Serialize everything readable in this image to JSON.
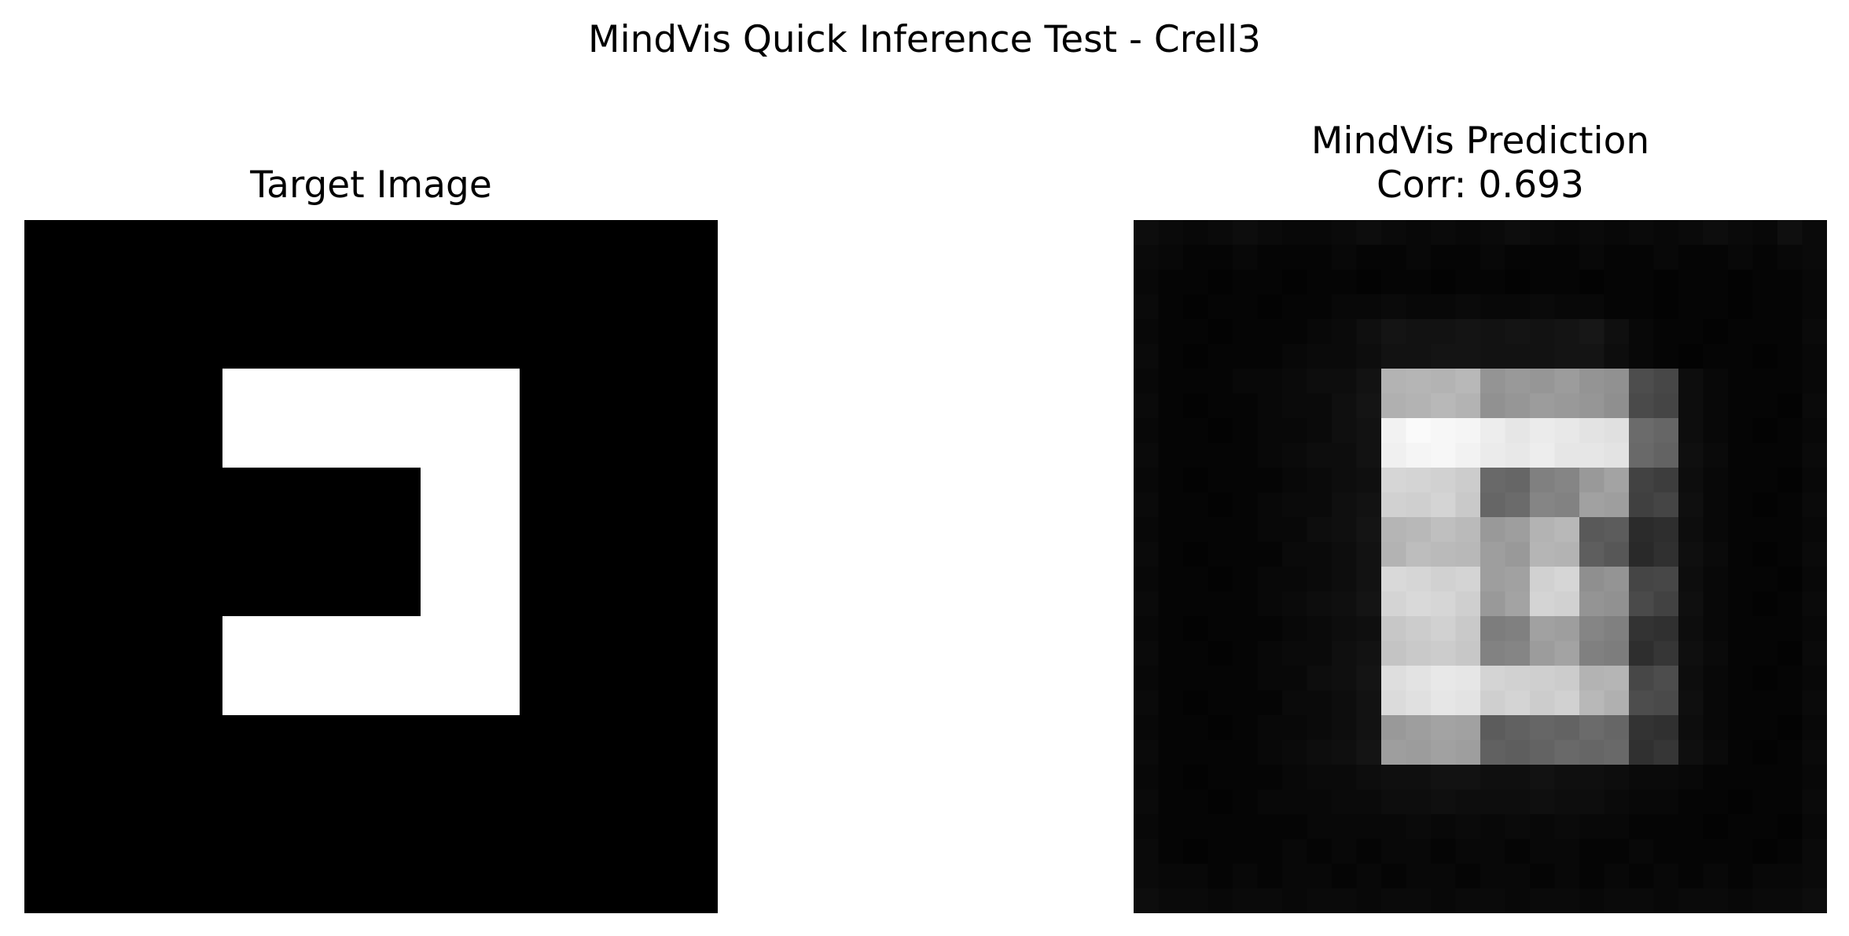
{
  "figure": {
    "title": "MindVis Quick Inference Test - Crell3"
  },
  "chart_data": [
    {
      "type": "heatmap",
      "title": "Target Image",
      "colormap": "gray",
      "axes": "off",
      "rows": 14,
      "cols": 14,
      "values": [
        [
          0,
          0,
          0,
          0,
          0,
          0,
          0,
          0,
          0,
          0,
          0,
          0,
          0,
          0
        ],
        [
          0,
          0,
          0,
          0,
          0,
          0,
          0,
          0,
          0,
          0,
          0,
          0,
          0,
          0
        ],
        [
          0,
          0,
          0,
          0,
          0,
          0,
          0,
          0,
          0,
          0,
          0,
          0,
          0,
          0
        ],
        [
          0,
          0,
          0,
          0,
          1,
          1,
          1,
          1,
          1,
          1,
          0,
          0,
          0,
          0
        ],
        [
          0,
          0,
          0,
          0,
          1,
          1,
          1,
          1,
          1,
          1,
          0,
          0,
          0,
          0
        ],
        [
          0,
          0,
          0,
          0,
          0,
          0,
          0,
          0,
          1,
          1,
          0,
          0,
          0,
          0
        ],
        [
          0,
          0,
          0,
          0,
          0,
          0,
          0,
          0,
          1,
          1,
          0,
          0,
          0,
          0
        ],
        [
          0,
          0,
          0,
          0,
          0,
          0,
          0,
          0,
          1,
          1,
          0,
          0,
          0,
          0
        ],
        [
          0,
          0,
          0,
          0,
          1,
          1,
          1,
          1,
          1,
          1,
          0,
          0,
          0,
          0
        ],
        [
          0,
          0,
          0,
          0,
          1,
          1,
          1,
          1,
          1,
          1,
          0,
          0,
          0,
          0
        ],
        [
          0,
          0,
          0,
          0,
          0,
          0,
          0,
          0,
          0,
          0,
          0,
          0,
          0,
          0
        ],
        [
          0,
          0,
          0,
          0,
          0,
          0,
          0,
          0,
          0,
          0,
          0,
          0,
          0,
          0
        ],
        [
          0,
          0,
          0,
          0,
          0,
          0,
          0,
          0,
          0,
          0,
          0,
          0,
          0,
          0
        ],
        [
          0,
          0,
          0,
          0,
          0,
          0,
          0,
          0,
          0,
          0,
          0,
          0,
          0,
          0
        ]
      ]
    },
    {
      "type": "heatmap",
      "title": "MindVis Prediction",
      "subtitle": "Corr: 0.693",
      "colormap": "gray",
      "axes": "off",
      "rows": 28,
      "cols": 28,
      "values": [
        [
          0.05,
          0.04,
          0.03,
          0.04,
          0.05,
          0.04,
          0.03,
          0.03,
          0.04,
          0.05,
          0.04,
          0.03,
          0.04,
          0.03,
          0.04,
          0.05,
          0.04,
          0.03,
          0.04,
          0.03,
          0.04,
          0.03,
          0.04,
          0.05,
          0.04,
          0.03,
          0.06,
          0.04
        ],
        [
          0.04,
          0.03,
          0.02,
          0.02,
          0.03,
          0.02,
          0.02,
          0.02,
          0.03,
          0.02,
          0.02,
          0.03,
          0.02,
          0.02,
          0.03,
          0.02,
          0.02,
          0.02,
          0.03,
          0.02,
          0.02,
          0.03,
          0.02,
          0.02,
          0.03,
          0.02,
          0.03,
          0.04
        ],
        [
          0.03,
          0.02,
          0.02,
          0.01,
          0.02,
          0.02,
          0.01,
          0.02,
          0.02,
          0.01,
          0.02,
          0.02,
          0.01,
          0.02,
          0.02,
          0.01,
          0.02,
          0.02,
          0.01,
          0.02,
          0.02,
          0.01,
          0.02,
          0.02,
          0.01,
          0.02,
          0.02,
          0.03
        ],
        [
          0.04,
          0.02,
          0.01,
          0.02,
          0.02,
          0.01,
          0.02,
          0.02,
          0.03,
          0.03,
          0.04,
          0.03,
          0.03,
          0.04,
          0.03,
          0.03,
          0.04,
          0.03,
          0.03,
          0.02,
          0.02,
          0.01,
          0.02,
          0.02,
          0.01,
          0.02,
          0.02,
          0.03
        ],
        [
          0.03,
          0.02,
          0.02,
          0.01,
          0.02,
          0.02,
          0.02,
          0.03,
          0.04,
          0.06,
          0.08,
          0.07,
          0.07,
          0.08,
          0.07,
          0.08,
          0.07,
          0.08,
          0.09,
          0.06,
          0.03,
          0.02,
          0.02,
          0.01,
          0.02,
          0.02,
          0.02,
          0.04
        ],
        [
          0.04,
          0.02,
          0.01,
          0.02,
          0.02,
          0.02,
          0.03,
          0.04,
          0.04,
          0.05,
          0.07,
          0.07,
          0.08,
          0.08,
          0.07,
          0.07,
          0.07,
          0.08,
          0.08,
          0.05,
          0.03,
          0.02,
          0.01,
          0.02,
          0.02,
          0.01,
          0.02,
          0.03
        ],
        [
          0.03,
          0.02,
          0.02,
          0.02,
          0.03,
          0.03,
          0.04,
          0.05,
          0.05,
          0.07,
          0.7,
          0.71,
          0.7,
          0.72,
          0.58,
          0.6,
          0.59,
          0.61,
          0.58,
          0.57,
          0.3,
          0.28,
          0.05,
          0.03,
          0.02,
          0.02,
          0.02,
          0.03
        ],
        [
          0.04,
          0.02,
          0.01,
          0.02,
          0.02,
          0.03,
          0.04,
          0.04,
          0.06,
          0.08,
          0.69,
          0.7,
          0.72,
          0.7,
          0.57,
          0.59,
          0.61,
          0.6,
          0.59,
          0.56,
          0.29,
          0.27,
          0.05,
          0.03,
          0.02,
          0.02,
          0.01,
          0.04
        ],
        [
          0.03,
          0.02,
          0.02,
          0.01,
          0.02,
          0.03,
          0.03,
          0.04,
          0.06,
          0.07,
          0.95,
          0.98,
          0.97,
          0.96,
          0.93,
          0.9,
          0.92,
          0.91,
          0.89,
          0.88,
          0.42,
          0.4,
          0.05,
          0.03,
          0.02,
          0.01,
          0.02,
          0.03
        ],
        [
          0.04,
          0.02,
          0.02,
          0.02,
          0.02,
          0.03,
          0.04,
          0.05,
          0.05,
          0.07,
          0.94,
          0.96,
          0.97,
          0.95,
          0.92,
          0.91,
          0.93,
          0.9,
          0.9,
          0.89,
          0.41,
          0.39,
          0.06,
          0.04,
          0.02,
          0.02,
          0.02,
          0.04
        ],
        [
          0.03,
          0.02,
          0.01,
          0.02,
          0.02,
          0.02,
          0.03,
          0.04,
          0.05,
          0.06,
          0.84,
          0.83,
          0.82,
          0.8,
          0.41,
          0.4,
          0.5,
          0.52,
          0.6,
          0.64,
          0.26,
          0.24,
          0.05,
          0.03,
          0.02,
          0.02,
          0.01,
          0.03
        ],
        [
          0.04,
          0.02,
          0.02,
          0.01,
          0.02,
          0.03,
          0.04,
          0.04,
          0.06,
          0.07,
          0.82,
          0.81,
          0.83,
          0.79,
          0.4,
          0.42,
          0.52,
          0.51,
          0.63,
          0.62,
          0.25,
          0.27,
          0.06,
          0.03,
          0.02,
          0.01,
          0.02,
          0.04
        ],
        [
          0.03,
          0.02,
          0.02,
          0.02,
          0.02,
          0.03,
          0.03,
          0.05,
          0.06,
          0.08,
          0.71,
          0.72,
          0.75,
          0.73,
          0.6,
          0.62,
          0.7,
          0.72,
          0.35,
          0.36,
          0.17,
          0.18,
          0.05,
          0.03,
          0.02,
          0.02,
          0.02,
          0.03
        ],
        [
          0.04,
          0.02,
          0.01,
          0.02,
          0.02,
          0.02,
          0.04,
          0.04,
          0.05,
          0.07,
          0.7,
          0.74,
          0.73,
          0.72,
          0.62,
          0.6,
          0.71,
          0.7,
          0.37,
          0.34,
          0.16,
          0.19,
          0.06,
          0.04,
          0.02,
          0.01,
          0.02,
          0.04
        ],
        [
          0.03,
          0.02,
          0.02,
          0.01,
          0.02,
          0.03,
          0.03,
          0.04,
          0.05,
          0.07,
          0.85,
          0.84,
          0.82,
          0.83,
          0.62,
          0.63,
          0.82,
          0.84,
          0.56,
          0.58,
          0.27,
          0.28,
          0.05,
          0.03,
          0.02,
          0.02,
          0.01,
          0.03
        ],
        [
          0.04,
          0.02,
          0.02,
          0.02,
          0.02,
          0.03,
          0.04,
          0.05,
          0.06,
          0.08,
          0.83,
          0.85,
          0.84,
          0.81,
          0.6,
          0.64,
          0.83,
          0.82,
          0.58,
          0.57,
          0.29,
          0.26,
          0.06,
          0.03,
          0.02,
          0.01,
          0.02,
          0.04
        ],
        [
          0.03,
          0.02,
          0.01,
          0.02,
          0.02,
          0.02,
          0.03,
          0.04,
          0.05,
          0.06,
          0.78,
          0.8,
          0.82,
          0.79,
          0.49,
          0.5,
          0.63,
          0.62,
          0.52,
          0.5,
          0.2,
          0.19,
          0.05,
          0.03,
          0.02,
          0.02,
          0.02,
          0.03
        ],
        [
          0.04,
          0.02,
          0.02,
          0.01,
          0.02,
          0.03,
          0.04,
          0.04,
          0.06,
          0.07,
          0.77,
          0.79,
          0.8,
          0.78,
          0.51,
          0.52,
          0.61,
          0.64,
          0.5,
          0.49,
          0.18,
          0.21,
          0.06,
          0.04,
          0.02,
          0.02,
          0.01,
          0.04
        ],
        [
          0.03,
          0.02,
          0.02,
          0.02,
          0.02,
          0.03,
          0.03,
          0.05,
          0.06,
          0.08,
          0.87,
          0.89,
          0.91,
          0.9,
          0.83,
          0.82,
          0.81,
          0.8,
          0.7,
          0.71,
          0.28,
          0.3,
          0.05,
          0.03,
          0.02,
          0.01,
          0.02,
          0.03
        ],
        [
          0.04,
          0.02,
          0.01,
          0.02,
          0.02,
          0.02,
          0.04,
          0.04,
          0.05,
          0.07,
          0.86,
          0.88,
          0.9,
          0.89,
          0.81,
          0.83,
          0.8,
          0.82,
          0.72,
          0.69,
          0.3,
          0.29,
          0.06,
          0.03,
          0.02,
          0.02,
          0.02,
          0.04
        ],
        [
          0.03,
          0.02,
          0.02,
          0.01,
          0.02,
          0.03,
          0.03,
          0.04,
          0.05,
          0.07,
          0.6,
          0.62,
          0.64,
          0.63,
          0.36,
          0.38,
          0.4,
          0.39,
          0.42,
          0.4,
          0.2,
          0.19,
          0.05,
          0.03,
          0.02,
          0.02,
          0.01,
          0.03
        ],
        [
          0.04,
          0.02,
          0.02,
          0.02,
          0.02,
          0.03,
          0.04,
          0.05,
          0.06,
          0.08,
          0.62,
          0.61,
          0.63,
          0.62,
          0.38,
          0.37,
          0.39,
          0.41,
          0.4,
          0.41,
          0.19,
          0.21,
          0.06,
          0.04,
          0.02,
          0.01,
          0.02,
          0.04
        ],
        [
          0.03,
          0.02,
          0.01,
          0.02,
          0.02,
          0.02,
          0.03,
          0.04,
          0.04,
          0.05,
          0.06,
          0.06,
          0.07,
          0.07,
          0.06,
          0.06,
          0.07,
          0.06,
          0.06,
          0.05,
          0.04,
          0.04,
          0.03,
          0.02,
          0.02,
          0.02,
          0.02,
          0.03
        ],
        [
          0.04,
          0.02,
          0.02,
          0.01,
          0.02,
          0.03,
          0.03,
          0.03,
          0.04,
          0.04,
          0.05,
          0.05,
          0.06,
          0.05,
          0.05,
          0.05,
          0.06,
          0.05,
          0.05,
          0.04,
          0.03,
          0.03,
          0.02,
          0.02,
          0.01,
          0.02,
          0.02,
          0.04
        ],
        [
          0.03,
          0.02,
          0.02,
          0.02,
          0.02,
          0.02,
          0.02,
          0.03,
          0.03,
          0.03,
          0.03,
          0.04,
          0.03,
          0.04,
          0.03,
          0.04,
          0.03,
          0.04,
          0.03,
          0.03,
          0.02,
          0.02,
          0.02,
          0.01,
          0.02,
          0.02,
          0.01,
          0.03
        ],
        [
          0.04,
          0.02,
          0.01,
          0.02,
          0.02,
          0.02,
          0.03,
          0.02,
          0.03,
          0.02,
          0.03,
          0.03,
          0.02,
          0.03,
          0.03,
          0.02,
          0.03,
          0.03,
          0.02,
          0.02,
          0.03,
          0.02,
          0.02,
          0.02,
          0.02,
          0.01,
          0.02,
          0.04
        ],
        [
          0.04,
          0.03,
          0.03,
          0.02,
          0.03,
          0.02,
          0.03,
          0.03,
          0.02,
          0.03,
          0.02,
          0.03,
          0.03,
          0.02,
          0.03,
          0.03,
          0.02,
          0.03,
          0.02,
          0.03,
          0.02,
          0.03,
          0.02,
          0.03,
          0.02,
          0.03,
          0.03,
          0.04
        ],
        [
          0.05,
          0.04,
          0.04,
          0.03,
          0.04,
          0.04,
          0.03,
          0.04,
          0.04,
          0.03,
          0.04,
          0.04,
          0.03,
          0.04,
          0.04,
          0.03,
          0.04,
          0.04,
          0.03,
          0.04,
          0.04,
          0.03,
          0.04,
          0.04,
          0.03,
          0.04,
          0.04,
          0.05
        ]
      ]
    }
  ]
}
